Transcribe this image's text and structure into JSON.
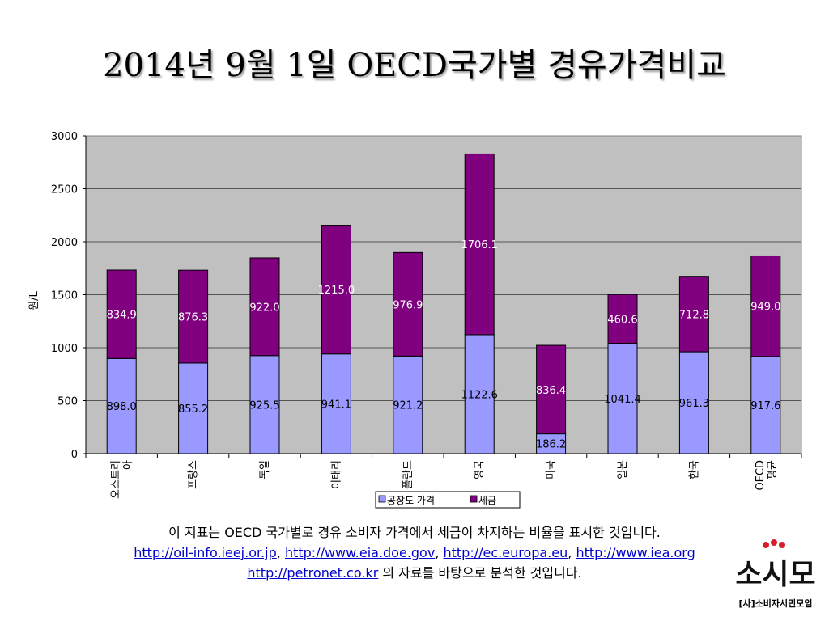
{
  "slide": {
    "title": "2014년 9월 1일 OECD국가별 경유가격비교"
  },
  "chart_data": {
    "type": "bar",
    "stacked": true,
    "categories": [
      "오스트리아",
      "프랑스",
      "독일",
      "이태리",
      "폴란드",
      "영국",
      "미국",
      "일본",
      "한국",
      "OECD 평균"
    ],
    "category_labels": [
      [
        "오스트리",
        "아"
      ],
      [
        "프랑스"
      ],
      [
        "독일"
      ],
      [
        "이태리"
      ],
      [
        "폴란드"
      ],
      [
        "영국"
      ],
      [
        "미국"
      ],
      [
        "일본"
      ],
      [
        "한국"
      ],
      [
        "OECD",
        "평균"
      ]
    ],
    "series": [
      {
        "name": "공장도 가격",
        "color": "#9999ff",
        "values": [
          898.0,
          855.2,
          925.5,
          941.1,
          921.2,
          1122.6,
          186.2,
          1041.4,
          961.3,
          917.6
        ],
        "labels": [
          "898.0",
          "855.2",
          "925.5",
          "941.1",
          "921.2",
          "1122.6",
          "186.2",
          "1041.4",
          "961.3",
          "917.6"
        ]
      },
      {
        "name": "세금",
        "color": "#800080",
        "values": [
          834.9,
          876.3,
          922.0,
          1215.0,
          976.9,
          1706.1,
          836.4,
          460.6,
          712.8,
          949.0
        ],
        "labels": [
          "834.9",
          "876.3",
          "922.0",
          "1215.0",
          "976.9",
          "1706.1",
          "836.4",
          "460.6",
          "712.8",
          "949.0"
        ]
      }
    ],
    "ylabel": "원/L",
    "ylim": [
      0,
      3000
    ],
    "yticks": [
      "0",
      "500",
      "1000",
      "1500",
      "2000",
      "2500",
      "3000"
    ],
    "ytick_values": [
      0,
      500,
      1000,
      1500,
      2000,
      2500,
      3000
    ],
    "grid": true,
    "plot_background": "#c0c0c0",
    "legend_position": "bottom"
  },
  "notes": {
    "line1": "이 지표는 OECD 국가별로 경유 소비자 가격에서 세금이 차지하는 비율을 표시한 것입니다.",
    "links": [
      "http://oil-info.ieej.or.jp",
      "http://www.eia.doe.gov",
      "http://ec.europa.eu",
      "http://www.iea.org",
      "http://petronet.co.kr"
    ],
    "sep1": ", ",
    "sep2": ", ",
    "sep3": ", ",
    "line3_suffix": " 의 자료를 바탕으로 분석한 것입니다."
  },
  "logo": {
    "wordmark": "소시모",
    "caption": "[사]소비자시민모임"
  }
}
